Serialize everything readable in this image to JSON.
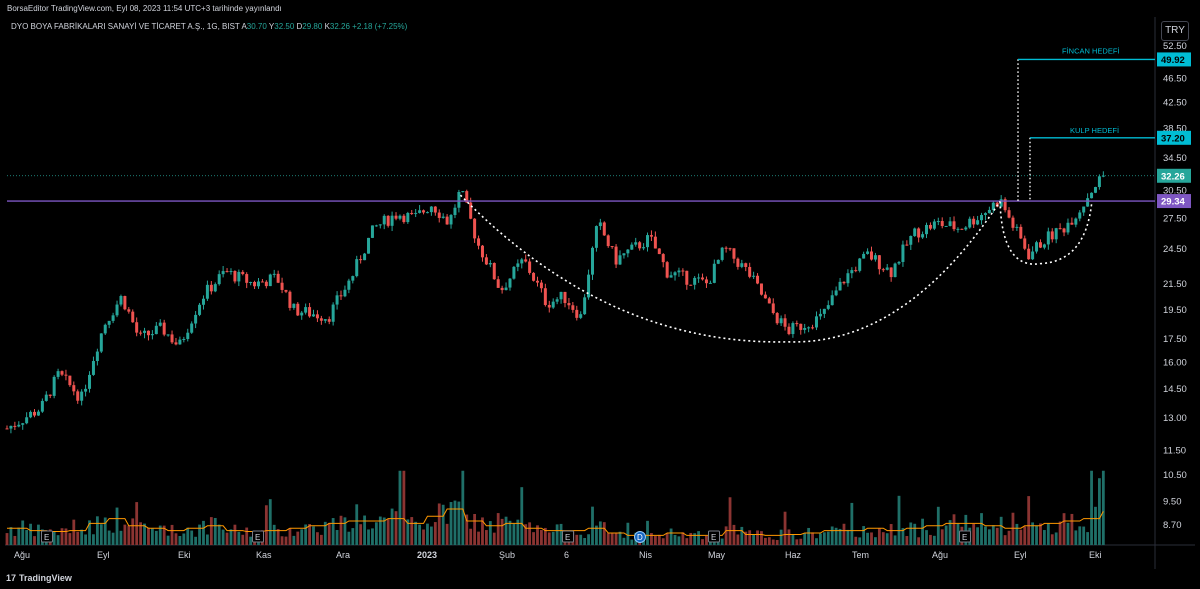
{
  "header": {
    "published": "BorsaEditor TradingView.com, Eyl 08, 2023 11:54 UTC+3 tarihinde yayınlandı"
  },
  "legend": {
    "symbol": "DYO BOYA FABRİKALARI SANAYİ VE TİCARET A.Ş., 1G, BIST",
    "o_label": "A",
    "o_value": "30.70",
    "h_label": "Y",
    "h_value": "32.50",
    "l_label": "D",
    "l_value": "29.80",
    "c_label": "K",
    "c_value": "32.26",
    "change": "+2.18 (+7.25%)"
  },
  "currency_button": "TRY",
  "footer": {
    "brand": "TradingView",
    "logo_mark": "17"
  },
  "colors": {
    "up": "#26a69a",
    "down": "#ef5350",
    "resistance": "#7e57c2",
    "target": "#00bcd4",
    "ma": "#ff9800",
    "text": "#d1d4dc"
  },
  "chart_data": {
    "type": "candlestick",
    "price_axis": {
      "labels": [
        "52.50",
        "46.50",
        "42.50",
        "38.50",
        "34.50",
        "30.50",
        "27.50",
        "24.50",
        "21.50",
        "19.50",
        "17.50",
        "16.00",
        "14.50",
        "13.00",
        "11.50",
        "10.50",
        "9.50",
        "8.70"
      ],
      "values": [
        52.5,
        46.5,
        42.5,
        38.5,
        34.5,
        30.5,
        27.5,
        24.5,
        21.5,
        19.5,
        17.5,
        16.0,
        14.5,
        13.0,
        11.5,
        10.5,
        9.5,
        8.7
      ],
      "scale": "log"
    },
    "time_axis": {
      "labels": [
        "Ağu",
        "Eyl",
        "Eki",
        "Kas",
        "Ara",
        "2023",
        "Şub",
        "6",
        "Nis",
        "May",
        "Haz",
        "Tem",
        "Ağu",
        "Eyl",
        "Eki"
      ],
      "bold": "2023"
    },
    "last_price": {
      "label": "32.26",
      "value": 32.26
    },
    "resistance": {
      "label": "29.34",
      "value": 29.34
    },
    "targets": [
      {
        "name": "FİNCAN HEDEFİ",
        "label": "49.92",
        "value": 49.92
      },
      {
        "name": "KULP HEDEFİ",
        "label": "37.20",
        "value": 37.2
      }
    ],
    "patterns": [
      "cup",
      "handle"
    ],
    "event_markers": [
      "E",
      "E",
      "E",
      "E",
      "E",
      "D",
      "E",
      "E",
      "E"
    ],
    "price_path": [
      [
        0,
        12.5
      ],
      [
        0.03,
        13.5
      ],
      [
        0.045,
        15.3
      ],
      [
        0.065,
        14.0
      ],
      [
        0.085,
        18.5
      ],
      [
        0.1,
        20.5
      ],
      [
        0.115,
        17.5
      ],
      [
        0.135,
        18.2
      ],
      [
        0.15,
        17.0
      ],
      [
        0.17,
        20.5
      ],
      [
        0.19,
        22.5
      ],
      [
        0.215,
        21.5
      ],
      [
        0.235,
        22.0
      ],
      [
        0.25,
        19.5
      ],
      [
        0.28,
        19.0
      ],
      [
        0.3,
        22.0
      ],
      [
        0.32,
        26.5
      ],
      [
        0.34,
        28.0
      ],
      [
        0.355,
        27.5
      ],
      [
        0.37,
        29.0
      ],
      [
        0.385,
        27.0
      ],
      [
        0.395,
        30.5
      ],
      [
        0.41,
        25.0
      ],
      [
        0.43,
        21.0
      ],
      [
        0.45,
        23.5
      ],
      [
        0.47,
        20.0
      ],
      [
        0.485,
        20.5
      ],
      [
        0.5,
        19.0
      ],
      [
        0.515,
        27.0
      ],
      [
        0.53,
        23.5
      ],
      [
        0.545,
        24.5
      ],
      [
        0.56,
        25.5
      ],
      [
        0.575,
        22.5
      ],
      [
        0.59,
        22.0
      ],
      [
        0.61,
        21.5
      ],
      [
        0.625,
        24.5
      ],
      [
        0.645,
        22.5
      ],
      [
        0.665,
        19.5
      ],
      [
        0.68,
        18.0
      ],
      [
        0.695,
        18.5
      ],
      [
        0.71,
        19.0
      ],
      [
        0.73,
        22.0
      ],
      [
        0.75,
        24.0
      ],
      [
        0.77,
        22.5
      ],
      [
        0.79,
        26.0
      ],
      [
        0.81,
        27.0
      ],
      [
        0.83,
        26.5
      ],
      [
        0.85,
        28.0
      ],
      [
        0.865,
        29.5
      ],
      [
        0.875,
        27.0
      ],
      [
        0.89,
        24.0
      ],
      [
        0.905,
        25.5
      ],
      [
        0.92,
        26.5
      ],
      [
        0.935,
        28.5
      ],
      [
        0.945,
        30.7
      ],
      [
        0.955,
        32.26
      ]
    ],
    "cup": {
      "left": [
        0.395,
        30.0
      ],
      "bottom": [
        0.68,
        17.3
      ],
      "right": [
        0.865,
        29.3
      ]
    },
    "handle": {
      "left": [
        0.865,
        29.3
      ],
      "bottom": [
        0.9,
        23.2
      ],
      "right": [
        0.945,
        29.3
      ]
    },
    "volume_profile": [
      0.35,
      0.3,
      0.28,
      0.3,
      0.45,
      0.55,
      0.4,
      0.35,
      0.3,
      0.35,
      0.4,
      0.3,
      0.28,
      0.3,
      0.35,
      0.4,
      0.45,
      0.5,
      0.5,
      0.55,
      0.45,
      0.6,
      0.75,
      0.5,
      0.4,
      0.45,
      0.35,
      0.3,
      0.3,
      0.35,
      0.25,
      0.2,
      0.2,
      0.25,
      0.2,
      0.2,
      0.3,
      0.22,
      0.2,
      0.22,
      0.25,
      0.3,
      0.3,
      0.35,
      0.3,
      0.35,
      0.4,
      0.45,
      0.45,
      0.4,
      0.35,
      0.4,
      0.45,
      0.5,
      0.55,
      0.7
    ]
  }
}
